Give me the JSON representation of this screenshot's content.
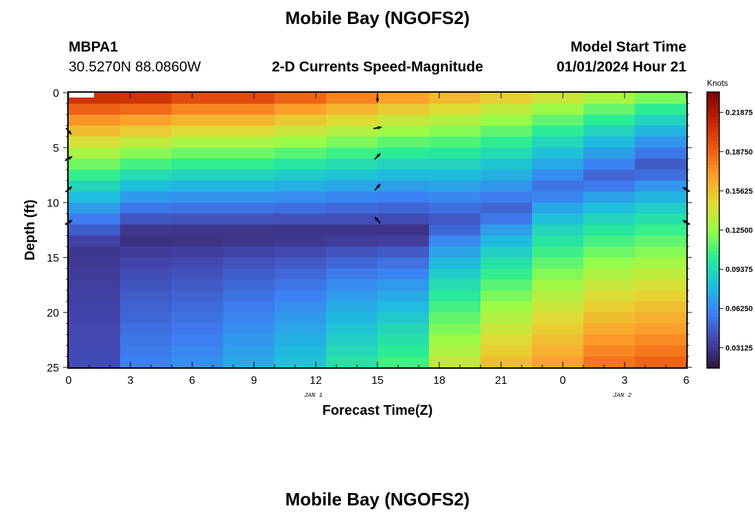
{
  "page": {
    "title": "Mobile Bay (NGOFS2)",
    "title_repeat": "Mobile Bay (NGOFS2)",
    "station_id": "MBPA1",
    "station_coords": "30.5270N  88.0860W",
    "plot_title": "2-D Currents Speed-Magnitude",
    "model_start_label": "Model Start Time",
    "model_start_value": "01/01/2024 Hour 21",
    "day_labels": [
      "JAN 1",
      "JAN 2"
    ]
  },
  "chart_data": {
    "type": "heatmap",
    "xlabel": "Forecast Time(Z)",
    "ylabel": "Depth (ft)",
    "colorbar_label": "Knots",
    "x_tick_labels": [
      "0",
      "3",
      "6",
      "9",
      "12",
      "15",
      "18",
      "21",
      "0",
      "3",
      "6"
    ],
    "y_tick_labels": [
      "0",
      "5",
      "10",
      "15",
      "20",
      "25"
    ],
    "ylim": [
      0,
      25
    ],
    "colorbar_ticks": [
      "0.03125",
      "0.06250",
      "0.09375",
      "0.12500",
      "0.15625",
      "0.18750",
      "0.21875"
    ],
    "colorbar_range": [
      0.015,
      0.235
    ],
    "time_steps": [
      0,
      1,
      2,
      3,
      4,
      5,
      6,
      7,
      8,
      9,
      10,
      11
    ],
    "depth_bounds": [
      1,
      2,
      3,
      4,
      5,
      6,
      7,
      8,
      9,
      10,
      11,
      12,
      13,
      14,
      15,
      16,
      17,
      18,
      19,
      20,
      21,
      22,
      23,
      24
    ],
    "speed_profiles": [
      {
        "time": 0,
        "top": 0.22,
        "mid": 0.03,
        "min_depth": 14,
        "bottom": 0.04
      },
      {
        "time": 1,
        "top": 0.22,
        "mid": 0.025,
        "min_depth": 13,
        "bottom": 0.06
      },
      {
        "time": 2,
        "top": 0.21,
        "mid": 0.025,
        "min_depth": 13,
        "bottom": 0.065
      },
      {
        "time": 3,
        "top": 0.21,
        "mid": 0.025,
        "min_depth": 13,
        "bottom": 0.075
      },
      {
        "time": 4,
        "top": 0.2,
        "mid": 0.025,
        "min_depth": 13,
        "bottom": 0.085
      },
      {
        "time": 5,
        "top": 0.19,
        "mid": 0.025,
        "min_depth": 13,
        "bottom": 0.1
      },
      {
        "time": 6,
        "top": 0.18,
        "mid": 0.025,
        "min_depth": 13,
        "bottom": 0.11
      },
      {
        "time": 7,
        "top": 0.17,
        "mid": 0.04,
        "min_depth": 12,
        "bottom": 0.14
      },
      {
        "time": 8,
        "top": 0.16,
        "mid": 0.045,
        "min_depth": 11,
        "bottom": 0.16
      },
      {
        "time": 9,
        "top": 0.15,
        "mid": 0.05,
        "min_depth": 9,
        "bottom": 0.17
      },
      {
        "time": 10,
        "top": 0.14,
        "mid": 0.045,
        "min_depth": 8,
        "bottom": 0.185
      },
      {
        "time": 11,
        "top": 0.13,
        "mid": 0.04,
        "min_depth": 7,
        "bottom": 0.19
      }
    ],
    "current_vectors": [
      {
        "time": 0,
        "depth": 3.5,
        "direction_deg": 140
      },
      {
        "time": 0,
        "depth": 6,
        "direction_deg": 60
      },
      {
        "time": 0,
        "depth": 8.8,
        "direction_deg": 50
      },
      {
        "time": 0,
        "depth": 11.8,
        "direction_deg": 60
      },
      {
        "time": 15,
        "depth": 0.5,
        "direction_deg": 180
      },
      {
        "time": 15,
        "depth": 3.2,
        "direction_deg": 80
      },
      {
        "time": 15,
        "depth": 5.8,
        "direction_deg": 45
      },
      {
        "time": 15,
        "depth": 8.6,
        "direction_deg": 40
      },
      {
        "time": 15,
        "depth": 11.6,
        "direction_deg": 320
      },
      {
        "time": 30,
        "depth": 8.8,
        "direction_deg": 300
      },
      {
        "time": 30,
        "depth": 11.8,
        "direction_deg": 300
      }
    ]
  }
}
